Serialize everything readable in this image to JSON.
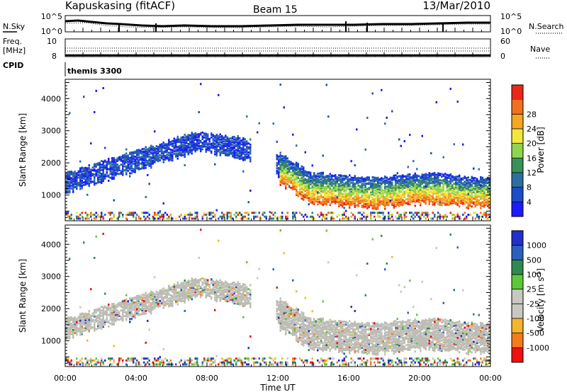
{
  "header": {
    "station": "Kapuskasing (fitACF)",
    "beam": "Beam 15",
    "date": "13/Mar/2010"
  },
  "summary_panel": {
    "nsky_label": "N.Sky",
    "nsearch_label": "N.Search",
    "noise_ticks": [
      "10^5",
      "10^0"
    ],
    "freq_label_1": "Freq.",
    "freq_label_2": "[MHz]",
    "freq_ticks": [
      "10",
      "8"
    ],
    "nave_label": "Nave",
    "nave_ticks": [
      "60",
      "0"
    ],
    "cpid_label": "CPID",
    "cpid_value": "themis 3300"
  },
  "colors": {
    "power": [
      "#1c1cff",
      "#1d4cc8",
      "#2f6f9f",
      "#3b8f5b",
      "#8fd44f",
      "#f2e640",
      "#f5a623",
      "#f07020",
      "#e82818"
    ],
    "velocity": [
      "#ee1111",
      "#f57a1a",
      "#f5b430",
      "#c8c8c0",
      "#c8c8c0",
      "#5ec83a",
      "#2f8a4f",
      "#2d5fbf",
      "#2030c8"
    ],
    "ground_scatter": "#bdbdb5"
  },
  "chart_data": [
    {
      "type": "heatmap",
      "panel": "power",
      "ylabel": "Slant Range [km]",
      "yticks": [
        "1000",
        "2000",
        "3000",
        "4000"
      ],
      "ylim": [
        200,
        4600
      ],
      "colorbar_label": "Power [dB]",
      "colorbar_ticks": [
        "4",
        "8",
        "12",
        "16",
        "20",
        "24",
        "28"
      ],
      "clim": [
        0,
        30
      ]
    },
    {
      "type": "heatmap",
      "panel": "velocity",
      "ylabel": "Slant Range [km]",
      "yticks": [
        "1000",
        "2000",
        "3000",
        "4000"
      ],
      "ylim": [
        200,
        4600
      ],
      "colorbar_label": "Velocity [m s",
      "colorbar_label_sup": "-1",
      "colorbar_label_close": "]",
      "colorbar_ticks": [
        "1000",
        "500",
        "100",
        "25",
        "-25",
        "-100",
        "-500",
        "-1000"
      ],
      "ground_scatter_shown": true
    }
  ],
  "time_axis": {
    "label": "Time UT",
    "ticks": [
      "00:00",
      "04:00",
      "08:00",
      "12:00",
      "16:00",
      "20:00",
      "00:00"
    ]
  }
}
